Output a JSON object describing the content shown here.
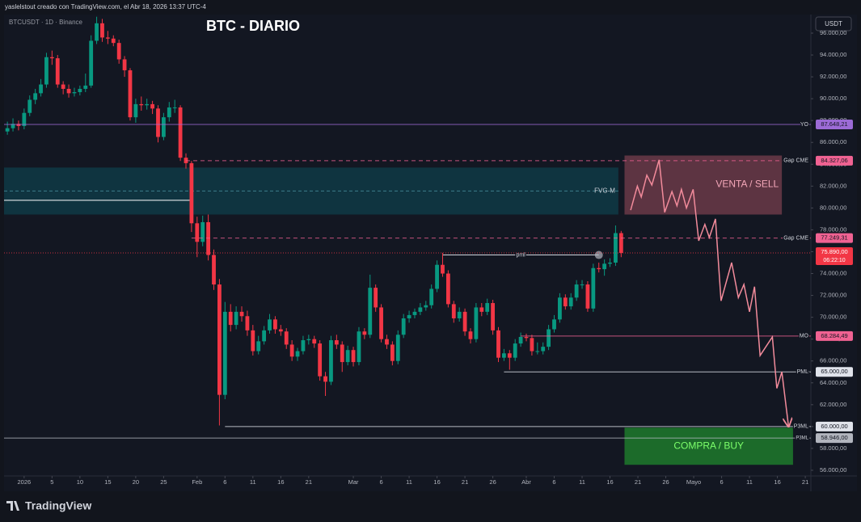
{
  "chart_data": {
    "type": "candlestick",
    "header": "yaslelstout creado con TradingView.com, el Abr 18, 2026 13:37 UTC-4",
    "symbol": "BTCUSDT · 1D · Binance",
    "title": "BTC - DIARIO",
    "currency": "USDT",
    "footer": "TradingView",
    "up_color": "#089981",
    "down_color": "#f23645",
    "xlim": [
      -3.6,
      141
    ],
    "ylim": [
      55480,
      97700
    ],
    "xticks": [
      {
        "value": 0,
        "label": "2026"
      },
      5,
      10,
      15,
      20,
      25,
      {
        "value": 31,
        "label": "Feb"
      },
      {
        "value": 36,
        "label": "6"
      },
      {
        "value": 41,
        "label": "11"
      },
      {
        "value": 46,
        "label": "16"
      },
      {
        "value": 51,
        "label": "21"
      },
      {
        "value": 59,
        "label": "Mar"
      },
      {
        "value": 64,
        "label": "6"
      },
      {
        "value": 69,
        "label": "11"
      },
      {
        "value": 74,
        "label": "16"
      },
      {
        "value": 79,
        "label": "21"
      },
      {
        "value": 84,
        "label": "26"
      },
      {
        "value": 90,
        "label": "Abr"
      },
      {
        "value": 95,
        "label": "6"
      },
      {
        "value": 100,
        "label": "11"
      },
      {
        "value": 105,
        "label": "16"
      },
      {
        "value": 110,
        "label": "21"
      },
      {
        "value": 115,
        "label": "26"
      },
      {
        "value": 120,
        "label": "Mayo"
      },
      {
        "value": 125,
        "label": "6"
      },
      {
        "value": 130,
        "label": "11"
      },
      {
        "value": 135,
        "label": "16"
      },
      {
        "value": 140,
        "label": "21"
      }
    ],
    "yticks": [
      {
        "value": 96000,
        "label": "96.000,00"
      },
      {
        "value": 94000,
        "label": "94.000,00"
      },
      {
        "value": 92000,
        "label": "92.000,00"
      },
      {
        "value": 90000,
        "label": "90.000,00"
      },
      {
        "value": 88000,
        "label": "88.000,00"
      },
      {
        "value": 86000,
        "label": "86.000,00"
      },
      {
        "value": 84000,
        "label": "84.000,00"
      },
      {
        "value": 82000,
        "label": "82.000,00"
      },
      {
        "value": 80000,
        "label": "80.000,00"
      },
      {
        "value": 78000,
        "label": "78.000,00"
      },
      {
        "value": 76000,
        "label": "76.000,00"
      },
      {
        "value": 74000,
        "label": "74.000,00"
      },
      {
        "value": 72000,
        "label": "72.000,00"
      },
      {
        "value": 70000,
        "label": "70.000,00"
      },
      {
        "value": 68000,
        "label": "68.000,00"
      },
      {
        "value": 66000,
        "label": "66.000,00"
      },
      {
        "value": 64000,
        "label": "64.000,00"
      },
      {
        "value": 62000,
        "label": "62.000,00"
      },
      {
        "value": 60000,
        "label": "60.000,00"
      },
      {
        "value": 58000,
        "label": "58.000,00"
      },
      {
        "value": 56000,
        "label": "56.000,00"
      }
    ],
    "x": [
      -3,
      -2,
      -1,
      0,
      1,
      2,
      3,
      4,
      5,
      6,
      7,
      8,
      9,
      10,
      11,
      12,
      13,
      14,
      15,
      16,
      17,
      18,
      19,
      20,
      21,
      22,
      23,
      24,
      25,
      26,
      27,
      28,
      29,
      30,
      31,
      32,
      33,
      34,
      35,
      36,
      37,
      38,
      39,
      40,
      41,
      42,
      43,
      44,
      45,
      46,
      47,
      48,
      49,
      50,
      51,
      52,
      53,
      54,
      55,
      56,
      57,
      58,
      59,
      60,
      61,
      62,
      63,
      64,
      65,
      66,
      67,
      68,
      69,
      70,
      71,
      72,
      73,
      74,
      75,
      76,
      77,
      78,
      79,
      80,
      81,
      82,
      83,
      84,
      85,
      86,
      87,
      88,
      89,
      90,
      91,
      92,
      93,
      94,
      95,
      96,
      97,
      98,
      99,
      100,
      101,
      102,
      103,
      104,
      105,
      106,
      107
    ],
    "ohlc": [
      [
        87000,
        87900,
        86700,
        87300
      ],
      [
        87300,
        88200,
        87000,
        87700
      ],
      [
        87700,
        88000,
        87100,
        87500
      ],
      [
        87500,
        89100,
        87200,
        88700
      ],
      [
        88700,
        90300,
        88400,
        89900
      ],
      [
        89900,
        90900,
        89500,
        90500
      ],
      [
        90500,
        91800,
        90200,
        91300
      ],
      [
        91300,
        94200,
        91000,
        93800
      ],
      [
        93800,
        94400,
        93100,
        93700
      ],
      [
        93700,
        94000,
        91000,
        91300
      ],
      [
        91300,
        91600,
        90400,
        90900
      ],
      [
        90900,
        91300,
        90100,
        90500
      ],
      [
        90500,
        91000,
        90200,
        90600
      ],
      [
        90600,
        91200,
        90300,
        90900
      ],
      [
        90900,
        92300,
        90600,
        91200
      ],
      [
        91200,
        95800,
        91000,
        95300
      ],
      [
        95300,
        97500,
        95000,
        96900
      ],
      [
        96900,
        97300,
        95200,
        95600
      ],
      [
        95600,
        96200,
        95000,
        95500
      ],
      [
        95500,
        95800,
        94800,
        95100
      ],
      [
        95100,
        95400,
        93200,
        93600
      ],
      [
        93600,
        93900,
        92000,
        92600
      ],
      [
        92600,
        92800,
        88000,
        88300
      ],
      [
        88300,
        90000,
        87800,
        89500
      ],
      [
        89500,
        90200,
        88900,
        89400
      ],
      [
        89400,
        90000,
        89000,
        89500
      ],
      [
        89500,
        89800,
        88600,
        89100
      ],
      [
        89100,
        89400,
        86000,
        86500
      ],
      [
        86500,
        88700,
        86200,
        88300
      ],
      [
        88300,
        89700,
        87900,
        89200
      ],
      [
        89200,
        89900,
        88700,
        89200
      ],
      [
        89200,
        89400,
        84300,
        84600
      ],
      [
        84600,
        85000,
        83600,
        84100
      ],
      [
        84100,
        84300,
        77800,
        78600
      ],
      [
        78600,
        79200,
        75500,
        76900
      ],
      [
        76900,
        79300,
        76500,
        78700
      ],
      [
        78700,
        79400,
        75200,
        75700
      ],
      [
        75700,
        76200,
        72500,
        73000
      ],
      [
        73000,
        73500,
        60100,
        62900
      ],
      [
        62900,
        71400,
        62500,
        70500
      ],
      [
        70500,
        71200,
        68700,
        69300
      ],
      [
        69300,
        71000,
        68900,
        70500
      ],
      [
        70500,
        71000,
        69600,
        70100
      ],
      [
        70100,
        70600,
        68300,
        68800
      ],
      [
        68800,
        69300,
        66500,
        66900
      ],
      [
        66900,
        68300,
        66600,
        67800
      ],
      [
        67800,
        69200,
        67500,
        68800
      ],
      [
        68800,
        70300,
        68500,
        69800
      ],
      [
        69800,
        70100,
        68500,
        68900
      ],
      [
        68900,
        69300,
        68300,
        68700
      ],
      [
        68700,
        69000,
        67100,
        67500
      ],
      [
        67500,
        67900,
        66000,
        66400
      ],
      [
        66400,
        67200,
        66000,
        66900
      ],
      [
        66900,
        68300,
        66600,
        67900
      ],
      [
        67900,
        68400,
        67500,
        68000
      ],
      [
        68000,
        68300,
        67200,
        67600
      ],
      [
        67600,
        67900,
        64200,
        64600
      ],
      [
        64600,
        65000,
        62800,
        64100
      ],
      [
        64100,
        68300,
        63800,
        67900
      ],
      [
        67900,
        68400,
        67100,
        67500
      ],
      [
        67500,
        67800,
        65000,
        65900
      ],
      [
        65900,
        67400,
        65600,
        67000
      ],
      [
        67000,
        67300,
        65500,
        65900
      ],
      [
        65900,
        69100,
        65600,
        68700
      ],
      [
        68700,
        69000,
        68000,
        68400
      ],
      [
        68400,
        73900,
        68100,
        72700
      ],
      [
        72700,
        73000,
        70500,
        70900
      ],
      [
        70900,
        71200,
        67700,
        68000
      ],
      [
        68000,
        68400,
        67100,
        67500
      ],
      [
        67500,
        67800,
        65600,
        66000
      ],
      [
        66000,
        68800,
        65700,
        68400
      ],
      [
        68400,
        70300,
        68100,
        69900
      ],
      [
        69900,
        70600,
        69500,
        70200
      ],
      [
        70200,
        70800,
        69900,
        70500
      ],
      [
        70500,
        71300,
        70200,
        70900
      ],
      [
        70900,
        71500,
        70600,
        71100
      ],
      [
        71100,
        73000,
        70800,
        72600
      ],
      [
        72600,
        75200,
        72300,
        74800
      ],
      [
        74800,
        75900,
        73700,
        74000
      ],
      [
        74000,
        74300,
        70900,
        71200
      ],
      [
        71200,
        71500,
        69500,
        69900
      ],
      [
        69900,
        70900,
        69600,
        70500
      ],
      [
        70500,
        70800,
        68300,
        68700
      ],
      [
        68700,
        69000,
        67600,
        68000
      ],
      [
        68000,
        71300,
        67700,
        70900
      ],
      [
        70900,
        71300,
        70100,
        70500
      ],
      [
        70500,
        71700,
        70200,
        71300
      ],
      [
        71300,
        71600,
        68400,
        68800
      ],
      [
        68800,
        69100,
        65900,
        66300
      ],
      [
        66300,
        67100,
        66000,
        66700
      ],
      [
        66700,
        67000,
        65200,
        66300
      ],
      [
        66300,
        68000,
        66000,
        67600
      ],
      [
        67600,
        68600,
        67300,
        68200
      ],
      [
        68200,
        68500,
        67800,
        68100
      ],
      [
        68100,
        68400,
        66500,
        66900
      ],
      [
        66900,
        67700,
        66600,
        66900
      ],
      [
        66900,
        67700,
        66600,
        67300
      ],
      [
        67300,
        69300,
        67000,
        68900
      ],
      [
        68900,
        70200,
        68600,
        69800
      ],
      [
        69800,
        72200,
        69500,
        71800
      ],
      [
        71800,
        72100,
        70700,
        71000
      ],
      [
        71000,
        72200,
        70700,
        71800
      ],
      [
        71800,
        73400,
        71500,
        73000
      ],
      [
        73000,
        73400,
        72600,
        73000
      ],
      [
        73000,
        73300,
        70500,
        70800
      ],
      [
        70800,
        74900,
        70500,
        74500
      ],
      [
        74500,
        75000,
        74100,
        74400
      ],
      [
        74400,
        75300,
        73800,
        74900
      ],
      [
        74900,
        75400,
        74600,
        75000
      ],
      [
        75000,
        78400,
        74700,
        77700
      ],
      [
        77700,
        77900,
        75500,
        75890
      ]
    ],
    "zones": [
      {
        "label": "FVG-M",
        "top": 83700,
        "bottom": 79400,
        "from": -3.6,
        "to": 106.5,
        "color": "#0f3a45",
        "text_color": "#d1d4dc"
      },
      {
        "label": "VENTA / SELL",
        "top": 84800,
        "bottom": 79400,
        "from": 107.6,
        "to": 135.8,
        "color": "#6b3a48",
        "text_color": "#f4a7b9"
      },
      {
        "label": "COMPRA / BUY",
        "top": 59900,
        "bottom": 56500,
        "from": 107.6,
        "to": 137.8,
        "color": "#1f7a2c",
        "text_color": "#7cff6b"
      }
    ],
    "lines": [
      {
        "value": 80700,
        "from": -3.6,
        "to": 30,
        "color": "#ffffff"
      },
      {
        "label": "pml",
        "value": 75700,
        "from": 75,
        "to": 103,
        "color": "#d1d4dc"
      }
    ],
    "levels": [
      {
        "name": "YO",
        "value": 87648.21,
        "label": "87.648,21",
        "color": "#9c6bd6",
        "dash": false,
        "from": -3.6
      },
      {
        "name": "Gap CME",
        "value": 84327.06,
        "label": "84.327,06",
        "color": "#f06292",
        "dash": true,
        "from": 29
      },
      {
        "name": "Gap CME",
        "value": 77249.31,
        "label": "77.249,31",
        "color": "#f06292",
        "dash": true,
        "from": 30
      },
      {
        "name": "MO",
        "value": 68284.49,
        "label": "68.284,49",
        "color": "#f06292",
        "dash": false,
        "from": 89
      },
      {
        "name": "PML",
        "value": 65000,
        "label": "65.000,00",
        "color": "#e0e3eb",
        "dash": false,
        "from": 86
      },
      {
        "name": "P3ML",
        "value": 60000,
        "label": "60.000,00",
        "color": "#e0e3eb",
        "dash": false,
        "from": 36
      },
      {
        "name": "P3ML",
        "value": 58946,
        "label": "58.946,00",
        "color": "#b2b5be",
        "dash": false,
        "from": -3.6
      }
    ],
    "current": {
      "value": 75890,
      "label": "75.890,00",
      "countdown": "06:22:10",
      "color": "#f23645"
    },
    "forecast": {
      "color": "#f28b9b",
      "x": [
        108.7,
        109.9,
        110.6,
        111.6,
        112.5,
        113.8,
        114.8,
        116.1,
        117,
        117.8,
        118.7,
        119.9,
        120.9,
        122,
        122.8,
        123.9,
        124.9,
        126.8,
        128,
        129,
        130,
        130.9,
        131.9,
        134.1,
        134.9,
        135.8,
        137
      ],
      "values": [
        79800,
        82000,
        81000,
        83000,
        82100,
        84400,
        79600,
        81500,
        80200,
        81700,
        80000,
        81700,
        77000,
        78500,
        77300,
        79000,
        71500,
        75000,
        71800,
        73000,
        70500,
        72800,
        66500,
        68200,
        63500,
        65000,
        60000
      ]
    }
  }
}
